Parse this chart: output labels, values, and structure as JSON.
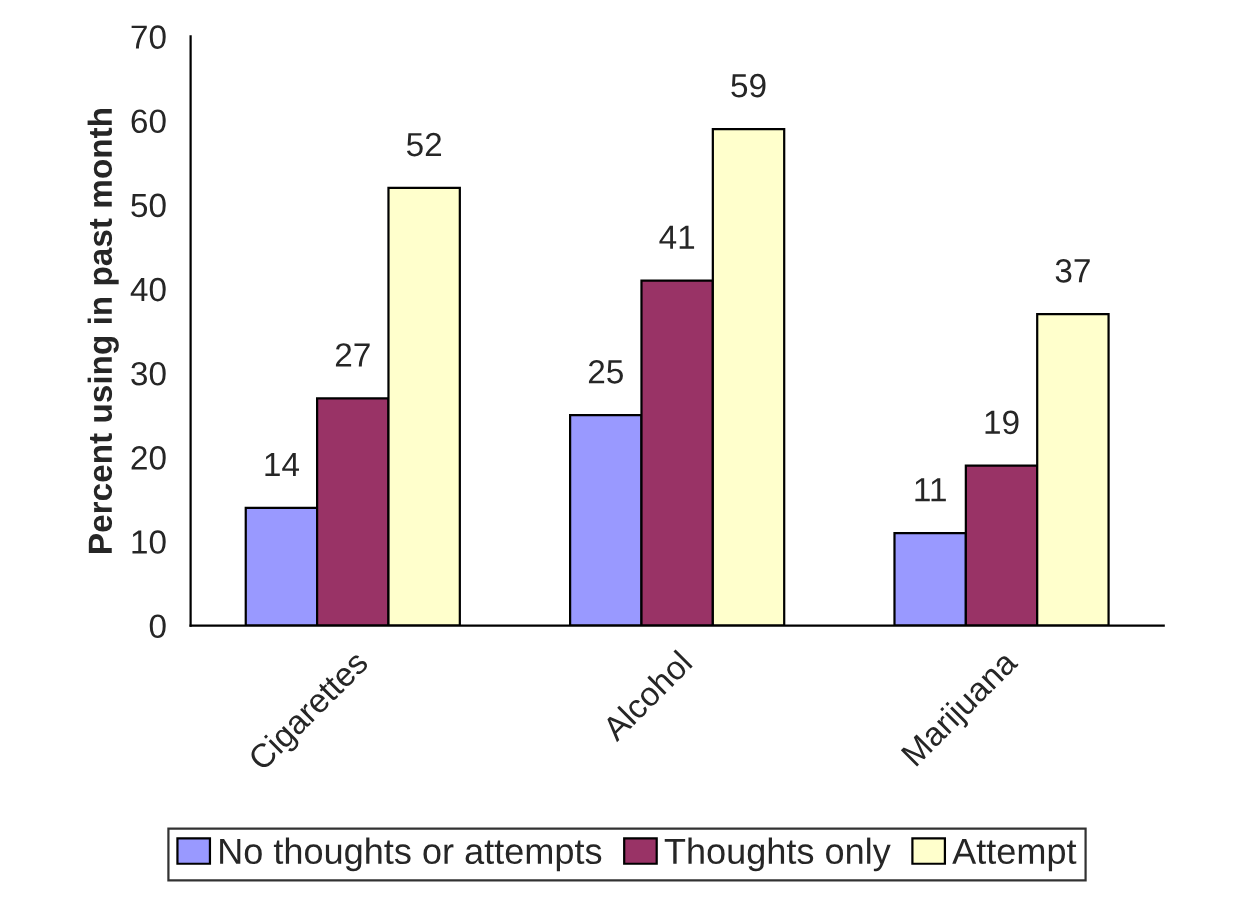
{
  "chart_data": {
    "type": "bar",
    "ylabel": "Percent using in past month",
    "categories": [
      "Cigarettes",
      "Alcohol",
      "Marijuana"
    ],
    "series": [
      {
        "name": "No thoughts or attempts",
        "color": "#9999ff",
        "values": [
          14,
          25,
          11
        ]
      },
      {
        "name": "Thoughts only",
        "color": "#993366",
        "values": [
          27,
          41,
          19
        ]
      },
      {
        "name": "Attempt",
        "color": "#ffffcc",
        "values": [
          52,
          59,
          37
        ]
      }
    ],
    "ylim": [
      0,
      70
    ],
    "yticks": [
      0,
      10,
      20,
      30,
      40,
      50,
      60,
      70
    ],
    "data_labels": true,
    "grid": false,
    "legend": "bottom"
  }
}
